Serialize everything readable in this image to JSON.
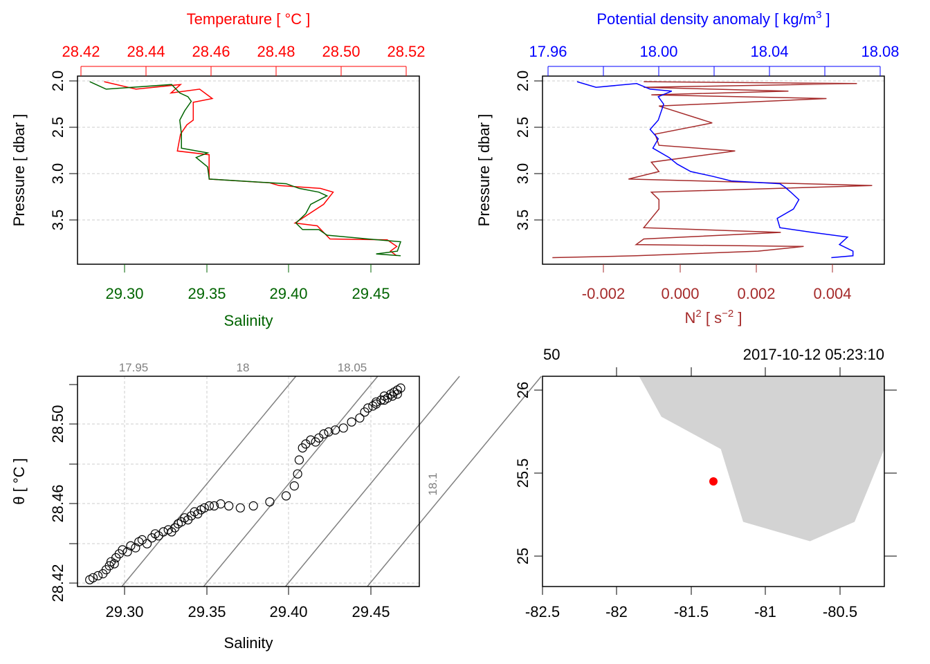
{
  "chart_data": [
    {
      "type": "line",
      "panel": "profile-temperature-salinity",
      "top_axis": {
        "label": "Temperature [ °C ]",
        "ticks": [
          "28.42",
          "28.44",
          "28.46",
          "28.48",
          "28.50",
          "28.52"
        ],
        "color": "#ff0000",
        "range": [
          28.4196,
          28.5271
        ]
      },
      "bottom_axis": {
        "label": "Salinity",
        "ticks": [
          "29.30",
          "29.35",
          "29.40",
          "29.45"
        ],
        "color": "#006400",
        "range": [
          29.2725,
          29.4814
        ]
      },
      "left_axis": {
        "label": "Pressure [ dbar ]",
        "ticks": [
          "2.0",
          "2.5",
          "3.0",
          "3.5"
        ],
        "range": [
          3.99,
          1.98
        ],
        "reversed": true
      },
      "series": [
        {
          "name": "Temperature",
          "color": "#ff0000",
          "points": [
            [
              28.428,
              2.04
            ],
            [
              28.438,
              2.12
            ],
            [
              28.452,
              2.07
            ],
            [
              28.449,
              2.16
            ],
            [
              28.458,
              2.12
            ],
            [
              28.462,
              2.22
            ],
            [
              28.456,
              2.26
            ],
            [
              28.456,
              2.45
            ],
            [
              28.454,
              2.5
            ],
            [
              28.452,
              2.6
            ],
            [
              28.451,
              2.78
            ],
            [
              28.461,
              2.82
            ],
            [
              28.461,
              2.94
            ],
            [
              28.461,
              3.08
            ],
            [
              28.48,
              3.12
            ],
            [
              28.483,
              3.15
            ],
            [
              28.496,
              3.18
            ],
            [
              28.5,
              3.22
            ],
            [
              28.497,
              3.35
            ],
            [
              28.488,
              3.55
            ],
            [
              28.495,
              3.58
            ],
            [
              28.499,
              3.72
            ],
            [
              28.517,
              3.73
            ],
            [
              28.52,
              3.8
            ],
            [
              28.518,
              3.85
            ],
            [
              28.52,
              3.9
            ]
          ]
        },
        {
          "name": "Salinity",
          "color": "#006400",
          "points": [
            [
              29.28,
              2.04
            ],
            [
              29.29,
              2.12
            ],
            [
              29.33,
              2.07
            ],
            [
              29.335,
              2.16
            ],
            [
              29.34,
              2.2
            ],
            [
              29.342,
              2.25
            ],
            [
              29.338,
              2.35
            ],
            [
              29.335,
              2.45
            ],
            [
              29.336,
              2.6
            ],
            [
              29.336,
              2.75
            ],
            [
              29.352,
              2.8
            ],
            [
              29.345,
              2.85
            ],
            [
              29.352,
              2.95
            ],
            [
              29.353,
              3.08
            ],
            [
              29.4,
              3.13
            ],
            [
              29.408,
              3.18
            ],
            [
              29.42,
              3.22
            ],
            [
              29.425,
              3.26
            ],
            [
              29.415,
              3.35
            ],
            [
              29.412,
              3.45
            ],
            [
              29.406,
              3.55
            ],
            [
              29.41,
              3.62
            ],
            [
              29.42,
              3.62
            ],
            [
              29.425,
              3.68
            ],
            [
              29.45,
              3.72
            ],
            [
              29.47,
              3.75
            ],
            [
              29.468,
              3.85
            ],
            [
              29.455,
              3.88
            ],
            [
              29.47,
              3.9
            ]
          ]
        }
      ]
    },
    {
      "type": "line",
      "panel": "profile-density-n2",
      "top_axis": {
        "label": "Potential density anomaly [ kg/m",
        "label_sup": "3",
        "label_end": " ]",
        "ticks": [
          "17.96",
          "18.00",
          "18.04",
          "18.08"
        ],
        "color": "#0000ff",
        "range": [
          17.9552,
          18.0816
        ]
      },
      "bottom_axis": {
        "label": "N",
        "label_sup": "2",
        "label_mid": " [ s",
        "label_sup2": "−2",
        "label_end": " ]",
        "ticks": [
          "-0.002",
          "0.000",
          "0.002",
          "0.004"
        ],
        "color": "#a52a2a",
        "range": [
          -0.00346,
          0.00552
        ]
      },
      "left_axis": {
        "label": "Pressure [ dbar ]",
        "ticks": [
          "2.0",
          "2.5",
          "3.0",
          "3.5"
        ],
        "range": [
          3.99,
          1.98
        ],
        "reversed": true
      },
      "series": [
        {
          "name": "Potential density anomaly",
          "color": "#0000ff",
          "points": [
            [
              17.968,
              2.04
            ],
            [
              17.975,
              2.1
            ],
            [
              17.99,
              2.06
            ],
            [
              17.995,
              2.12
            ],
            [
              18.003,
              2.14
            ],
            [
              17.998,
              2.2
            ],
            [
              18.0,
              2.28
            ],
            [
              17.998,
              2.45
            ],
            [
              17.995,
              2.55
            ],
            [
              17.998,
              2.65
            ],
            [
              17.996,
              2.75
            ],
            [
              18.002,
              2.85
            ],
            [
              18.005,
              2.92
            ],
            [
              18.01,
              3.0
            ],
            [
              18.018,
              3.05
            ],
            [
              18.025,
              3.1
            ],
            [
              18.043,
              3.13
            ],
            [
              18.045,
              3.17
            ],
            [
              18.047,
              3.22
            ],
            [
              18.05,
              3.3
            ],
            [
              18.048,
              3.4
            ],
            [
              18.042,
              3.5
            ],
            [
              18.043,
              3.6
            ],
            [
              18.055,
              3.65
            ],
            [
              18.068,
              3.7
            ],
            [
              18.065,
              3.78
            ],
            [
              18.07,
              3.85
            ],
            [
              18.07,
              3.9
            ],
            [
              18.062,
              3.92
            ]
          ]
        },
        {
          "name": "N2",
          "color": "#a52a2a",
          "points": [
            [
              -0.0032,
              3.92
            ],
            [
              -0.001,
              3.9
            ],
            [
              0.0022,
              3.85
            ],
            [
              0.0034,
              3.8
            ],
            [
              -0.001,
              3.78
            ],
            [
              -0.0008,
              3.72
            ],
            [
              0.0028,
              3.65
            ],
            [
              -0.0008,
              3.6
            ],
            [
              -0.0006,
              3.5
            ],
            [
              -0.0004,
              3.4
            ],
            [
              -0.0004,
              3.3
            ],
            [
              -0.0006,
              3.22
            ],
            [
              0.0052,
              3.15
            ],
            [
              -0.0012,
              3.08
            ],
            [
              -0.0004,
              3.0
            ],
            [
              -0.0006,
              2.9
            ],
            [
              0.0016,
              2.78
            ],
            [
              -0.0004,
              2.72
            ],
            [
              -0.0005,
              2.6
            ],
            [
              0.001,
              2.48
            ],
            [
              -0.0004,
              2.3
            ],
            [
              0.004,
              2.22
            ],
            [
              -0.0006,
              2.18
            ],
            [
              0.003,
              2.14
            ],
            [
              -0.0008,
              2.1
            ],
            [
              0.0048,
              2.06
            ],
            [
              -0.0008,
              2.04
            ]
          ]
        }
      ]
    },
    {
      "type": "scatter",
      "panel": "ts-diagram",
      "xlabel": "Salinity",
      "ylabel": "θ [ °C ]",
      "x_ticks": [
        "29.30",
        "29.35",
        "29.40",
        "29.45"
      ],
      "y_ticks": [
        "28.42",
        "28.46",
        "28.50"
      ],
      "xlim": [
        29.2725,
        29.4814
      ],
      "ylim": [
        28.4196,
        28.5249
      ],
      "grid": true,
      "isopycnals": [
        {
          "label": "17.95",
          "s0": 29.3,
          "t0": 28.42
        },
        {
          "label": "18",
          "s0": 29.35,
          "t0": 28.42
        },
        {
          "label": "18.05",
          "s0": 29.4,
          "t0": 28.42
        },
        {
          "label": "18.1",
          "s0": 29.45,
          "t0": 28.42
        }
      ],
      "isopycnal_slope_t_per_s": 0.99,
      "points": [
        [
          29.28,
          28.423
        ],
        [
          29.282,
          28.424
        ],
        [
          29.285,
          28.425
        ],
        [
          29.288,
          28.426
        ],
        [
          29.29,
          28.428
        ],
        [
          29.292,
          28.43
        ],
        [
          29.293,
          28.432
        ],
        [
          29.295,
          28.431
        ],
        [
          29.296,
          28.434
        ],
        [
          29.298,
          28.436
        ],
        [
          29.3,
          28.438
        ],
        [
          29.303,
          28.437
        ],
        [
          29.305,
          28.44
        ],
        [
          29.308,
          28.439
        ],
        [
          29.31,
          28.442
        ],
        [
          29.312,
          28.443
        ],
        [
          29.315,
          28.441
        ],
        [
          29.318,
          28.444
        ],
        [
          29.32,
          28.446
        ],
        [
          29.322,
          28.445
        ],
        [
          29.325,
          28.447
        ],
        [
          29.328,
          28.448
        ],
        [
          29.33,
          28.447
        ],
        [
          29.332,
          28.449
        ],
        [
          29.334,
          28.451
        ],
        [
          29.336,
          28.452
        ],
        [
          29.338,
          28.454
        ],
        [
          29.34,
          28.453
        ],
        [
          29.342,
          28.455
        ],
        [
          29.344,
          28.457
        ],
        [
          29.346,
          28.456
        ],
        [
          29.348,
          28.458
        ],
        [
          29.35,
          28.459
        ],
        [
          29.353,
          28.46
        ],
        [
          29.356,
          28.46
        ],
        [
          29.36,
          28.461
        ],
        [
          29.365,
          28.46
        ],
        [
          29.372,
          28.459
        ],
        [
          29.38,
          28.46
        ],
        [
          29.39,
          28.462
        ],
        [
          29.4,
          28.465
        ],
        [
          29.405,
          28.47
        ],
        [
          29.407,
          28.476
        ],
        [
          29.408,
          28.483
        ],
        [
          29.41,
          28.489
        ],
        [
          29.412,
          28.491
        ],
        [
          29.415,
          28.493
        ],
        [
          29.418,
          28.492
        ],
        [
          29.42,
          28.494
        ],
        [
          29.423,
          28.496
        ],
        [
          29.426,
          28.497
        ],
        [
          29.43,
          28.498
        ],
        [
          29.435,
          28.499
        ],
        [
          29.44,
          28.502
        ],
        [
          29.445,
          28.504
        ],
        [
          29.448,
          28.507
        ],
        [
          29.45,
          28.509
        ],
        [
          29.453,
          28.51
        ],
        [
          29.455,
          28.512
        ],
        [
          29.458,
          28.513
        ],
        [
          29.46,
          28.515
        ],
        [
          29.462,
          28.514
        ],
        [
          29.464,
          28.516
        ],
        [
          29.466,
          28.517
        ],
        [
          29.468,
          28.518
        ],
        [
          29.47,
          28.519
        ],
        [
          29.468,
          28.516
        ],
        [
          29.465,
          28.515
        ],
        [
          29.46,
          28.513
        ],
        [
          29.455,
          28.511
        ]
      ]
    },
    {
      "type": "map",
      "panel": "station-map",
      "top_labels": {
        "station": "50",
        "time": "2017-10-12 05:23:10"
      },
      "x_ticks": [
        "-82.5",
        "-82",
        "-81.5",
        "-81",
        "-80.5"
      ],
      "y_ticks": [
        "25",
        "25.5",
        "26"
      ],
      "xlim": [
        -82.5,
        -80.2
      ],
      "ylim": [
        24.8,
        26.1
      ],
      "land_color": "#d3d3d3",
      "land_polygon_lonlat": [
        [
          -81.85,
          26.1
        ],
        [
          -80.2,
          26.1
        ],
        [
          -80.2,
          25.65
        ],
        [
          -80.4,
          25.2
        ],
        [
          -80.7,
          25.08
        ],
        [
          -81.15,
          25.2
        ],
        [
          -81.3,
          25.65
        ],
        [
          -81.7,
          25.85
        ]
      ],
      "station": {
        "lon": -81.35,
        "lat": 25.45,
        "color": "#ff0000"
      }
    }
  ]
}
